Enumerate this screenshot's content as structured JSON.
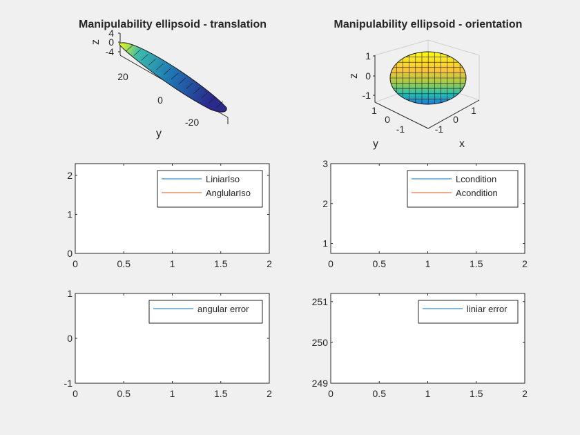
{
  "colors": {
    "figure_bg": "#f0f0f0",
    "axes_bg": "#ffffff",
    "axis": "#262626",
    "series_blue": "#0072bd",
    "series_orange": "#d95319"
  },
  "chart_data": [
    {
      "type": "surface3d",
      "title": "Manipulability ellipsoid - translation",
      "xlabel": "",
      "ylabel": "y",
      "zlabel": "z",
      "y_ticks": [
        "20",
        "0",
        "-20"
      ],
      "z_ticks": [
        "4",
        "0",
        "-4"
      ],
      "colormap": "parula"
    },
    {
      "type": "surface3d",
      "title": "Manipulability ellipsoid - orientation",
      "xlabel": "x",
      "ylabel": "y",
      "zlabel": "z",
      "x_ticks": [
        "-1",
        "0",
        "1"
      ],
      "y_ticks": [
        "1",
        "0",
        "-1"
      ],
      "z_ticks": [
        "1",
        "0",
        "-1"
      ],
      "colormap": "parula"
    },
    {
      "type": "line",
      "xlim": [
        0,
        2
      ],
      "ylim": [
        0,
        2.3
      ],
      "x_ticks": [
        "0",
        "0.5",
        "1",
        "1.5",
        "2"
      ],
      "y_ticks": [
        "0",
        "1",
        "2"
      ],
      "legend_position": "top-right",
      "series": [
        {
          "name": "LiniarIso",
          "values": []
        },
        {
          "name": "AnglularIso",
          "values": []
        }
      ]
    },
    {
      "type": "line",
      "xlim": [
        0,
        2
      ],
      "ylim": [
        0.75,
        3
      ],
      "x_ticks": [
        "0",
        "0.5",
        "1",
        "1.5",
        "2"
      ],
      "y_ticks": [
        "1",
        "2",
        "3"
      ],
      "legend_position": "top-right",
      "series": [
        {
          "name": "Lcondition",
          "values": []
        },
        {
          "name": "Acondition",
          "values": []
        }
      ]
    },
    {
      "type": "line",
      "xlim": [
        0,
        2
      ],
      "ylim": [
        -1,
        1
      ],
      "x_ticks": [
        "0",
        "0.5",
        "1",
        "1.5",
        "2"
      ],
      "y_ticks": [
        "1",
        "0",
        "-1"
      ],
      "legend_position": "top-right",
      "series": [
        {
          "name": "angular error",
          "values": []
        }
      ]
    },
    {
      "type": "line",
      "xlim": [
        0,
        2
      ],
      "ylim": [
        249,
        251.2
      ],
      "x_ticks": [
        "0",
        "0.5",
        "1",
        "1.5",
        "2"
      ],
      "y_ticks": [
        "251",
        "250",
        "249"
      ],
      "legend_position": "top-right",
      "series": [
        {
          "name": "liniar error",
          "values": []
        }
      ]
    }
  ]
}
